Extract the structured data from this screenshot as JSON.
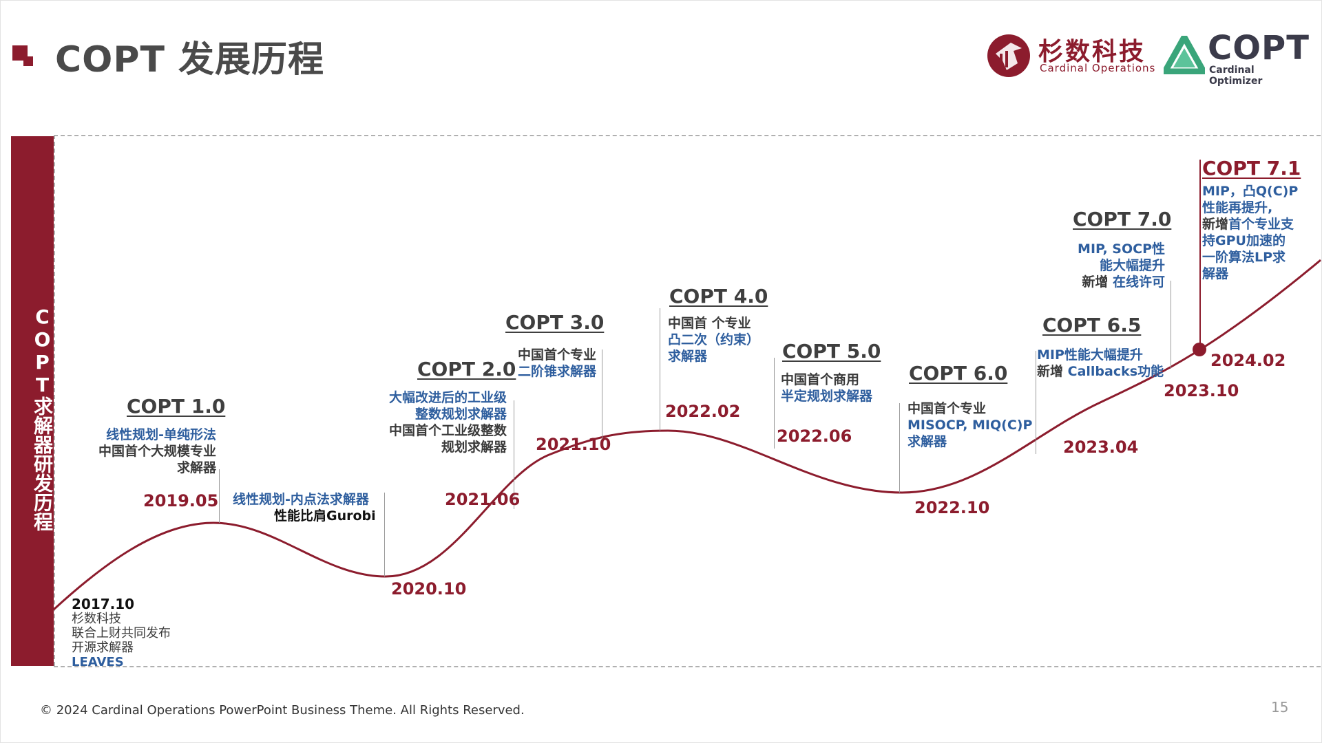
{
  "slide": {
    "title": "COPT 发展历程",
    "sidebar_text": "COPT求解器研发历程",
    "footer": "© 2024 Cardinal Operations PowerPoint Business Theme. All Rights Reserved.",
    "page_number": "15"
  },
  "logos": {
    "company_name": "杉数科技",
    "company_sub": "Cardinal Operations",
    "product_name": "COPT",
    "product_sub": "Cardinal Optimizer"
  },
  "colors": {
    "accent": "#8c1c2d",
    "blue_text": "#2e5e9e",
    "dark_text": "#3a3a3a"
  },
  "timeline": {
    "d2017": {
      "date": "2017.10",
      "l1": "杉数科技",
      "l2": "联合上财共同发布",
      "l3": "开源求解器",
      "l4": "LEAVES"
    },
    "v1": {
      "title": "COPT 1.0",
      "l1": "线性规划-单纯形法",
      "l2": "中国首个大规模专业",
      "l3": "求解器",
      "date": "2019.05"
    },
    "v11": {
      "l1": "线性规划-内点法求解器",
      "l2": "性能比肩Gurobi",
      "date": "2020.10"
    },
    "v2": {
      "title": "COPT 2.0",
      "l1": "大幅改进后的工业级",
      "l2": "整数规划求解器",
      "l3": "中国首个工业级整数",
      "l4": "规划求解器",
      "date": "2021.06"
    },
    "v3": {
      "title": "COPT 3.0",
      "l1": "中国首个专业",
      "l2": "二阶锥求解器",
      "date": "2021.10"
    },
    "v4": {
      "title": "COPT 4.0",
      "l1": "中国首 个专业",
      "l2": "凸二次（约束）",
      "l3": "求解器",
      "date": "2022.02"
    },
    "v5": {
      "title": "COPT 5.0",
      "l1": "中国首个商用",
      "l2": "半定规划求解器",
      "date": "2022.06"
    },
    "v6": {
      "title": "COPT 6.0",
      "l1": "中国首个专业",
      "l2": "MISOCP, MIQ(C)P",
      "l3": "求解器",
      "date": "2022.10"
    },
    "v65": {
      "title": "COPT 6.5",
      "l1": "MIP性能大幅提升",
      "l2a": "新增 ",
      "l2b": "Callbacks功能",
      "date": "2023.04"
    },
    "v7": {
      "title": "COPT 7.0",
      "l1": "MIP, SOCP性",
      "l2": "能大幅提升",
      "l3a": "新增 ",
      "l3b": "在线许可",
      "date": "2023.10"
    },
    "v71": {
      "title": "COPT 7.1",
      "l1": "MIP，凸Q(C)P",
      "l2": "性能再提升,",
      "l3a": "新增",
      "l3b": "首个专业支",
      "l4": "持GPU加速的",
      "l5": "一阶算法LP求",
      "l6": "解器",
      "date": "2024.02"
    }
  }
}
